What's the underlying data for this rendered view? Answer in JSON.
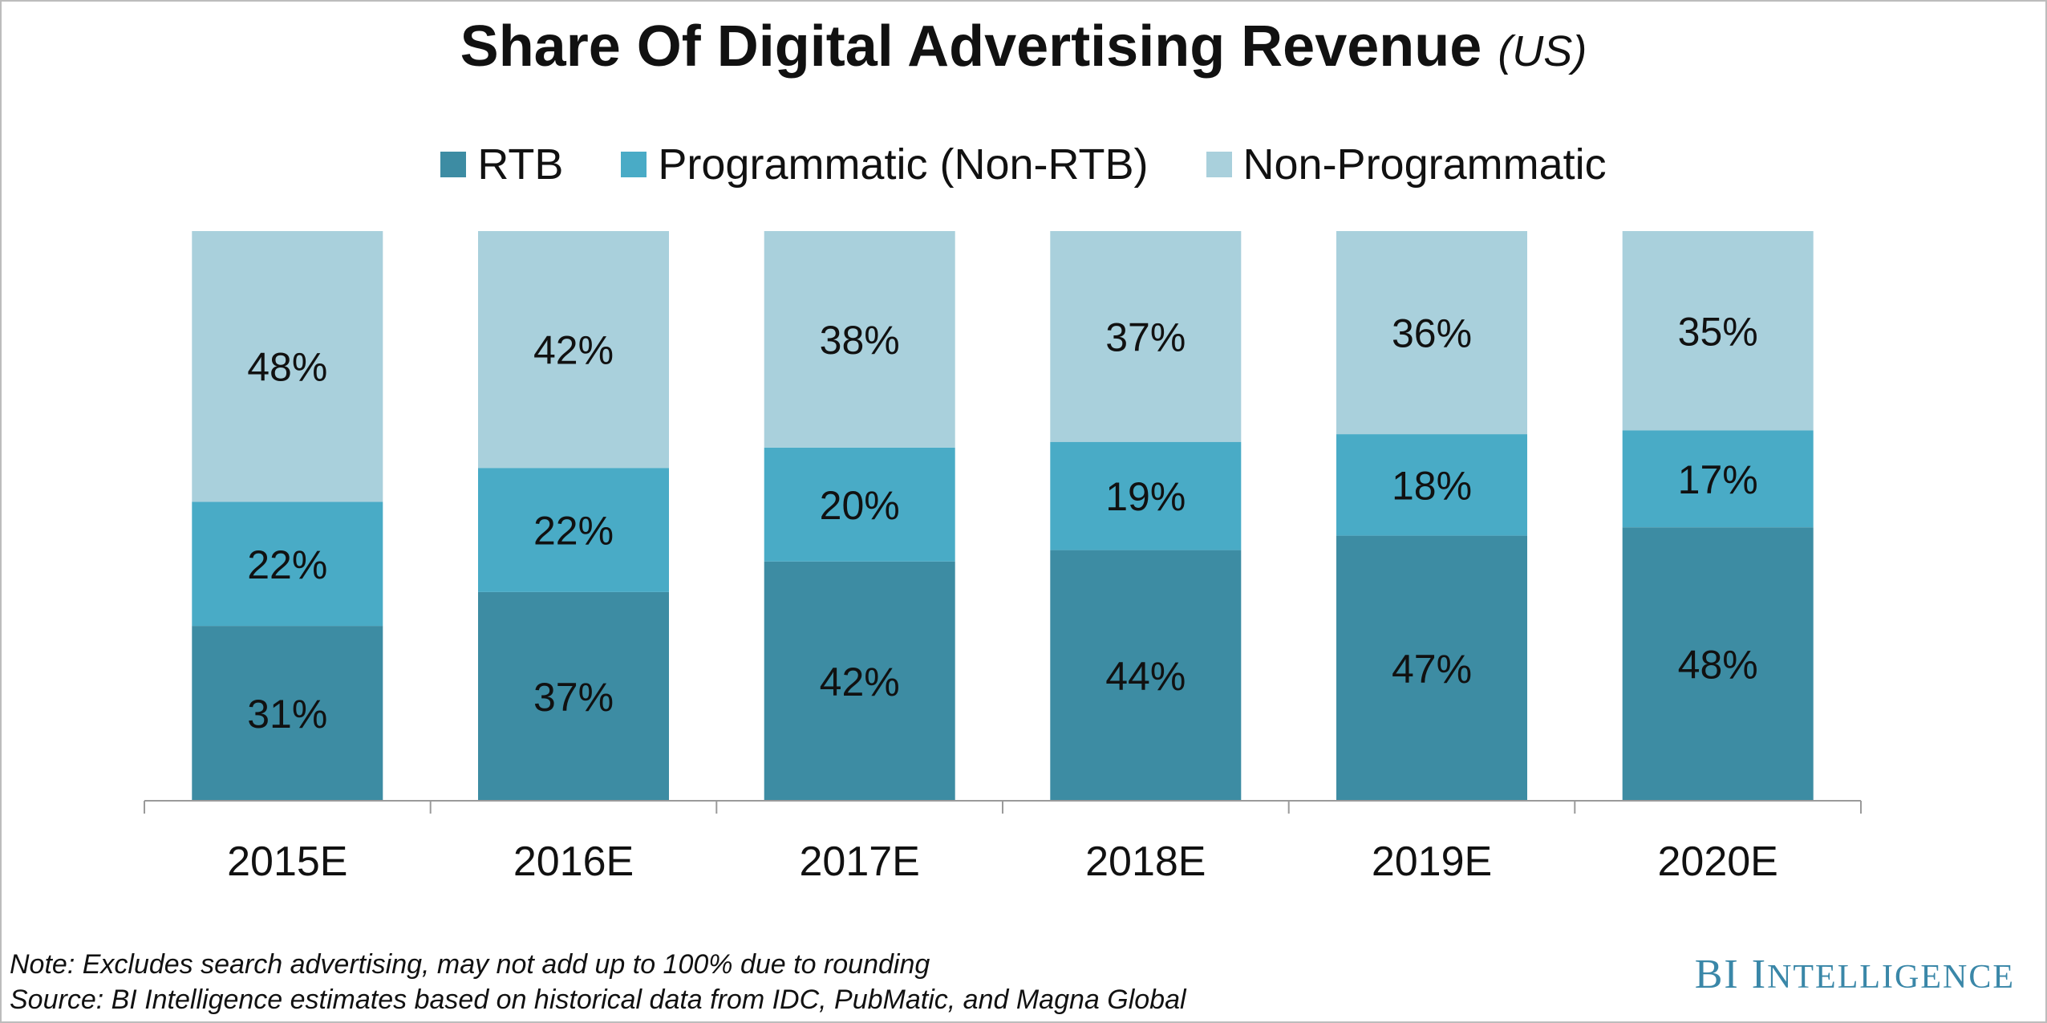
{
  "title": "Share Of Digital Advertising Revenue",
  "title_suffix": "(US)",
  "note": "Note: Excludes search advertising, may not add up to 100% due to rounding",
  "source": "Source: BI Intelligence estimates based on historical data from IDC, PubMatic, and Magna Global",
  "brand": {
    "first": "BI",
    "second_initial": "I",
    "second_rest": "NTELLIGENCE",
    "color": "#3a87a8"
  },
  "colors": {
    "rtb": "#3d8ca3",
    "programmatic": "#49abc6",
    "non_programmatic": "#a9d0dc"
  },
  "chart_data": {
    "type": "bar",
    "stacked": true,
    "normalized": true,
    "title": "Share Of Digital Advertising Revenue (US)",
    "categories": [
      "2015E",
      "2016E",
      "2017E",
      "2018E",
      "2019E",
      "2020E"
    ],
    "series": [
      {
        "name": "RTB",
        "values": [
          31,
          37,
          42,
          44,
          47,
          48
        ],
        "color": "#3d8ca3"
      },
      {
        "name": "Programmatic (Non-RTB)",
        "values": [
          22,
          22,
          20,
          19,
          18,
          17
        ],
        "color": "#49abc6"
      },
      {
        "name": "Non-Programmatic",
        "values": [
          48,
          42,
          38,
          37,
          36,
          35
        ],
        "color": "#a9d0dc"
      }
    ],
    "value_suffix": "%",
    "legend_position": "top",
    "grid": false
  }
}
